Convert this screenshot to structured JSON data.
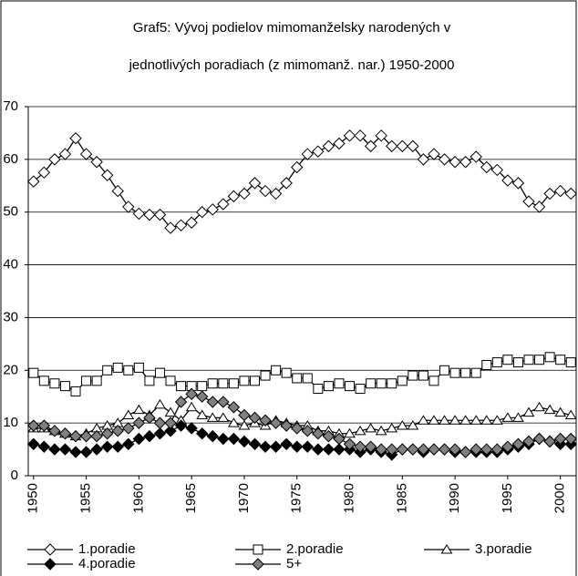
{
  "chart_data": {
    "type": "line",
    "title": [
      "Graf5: Vývoj podielov mimomanželsky narodených v",
      "jednotlivých poradiach (z mimomanž. nar.) 1950-2000"
    ],
    "x": [
      1950,
      1951,
      1952,
      1953,
      1954,
      1955,
      1956,
      1957,
      1958,
      1959,
      1960,
      1961,
      1962,
      1963,
      1964,
      1965,
      1966,
      1967,
      1968,
      1969,
      1970,
      1971,
      1972,
      1973,
      1974,
      1975,
      1976,
      1977,
      1978,
      1979,
      1980,
      1981,
      1982,
      1983,
      1984,
      1985,
      1986,
      1987,
      1988,
      1989,
      1990,
      1991,
      1992,
      1993,
      1994,
      1995,
      1996,
      1997,
      1998,
      1999,
      2000,
      2001
    ],
    "xlim": [
      1949.5,
      2001.5
    ],
    "xticks": [
      1950,
      1955,
      1960,
      1965,
      1970,
      1975,
      1980,
      1985,
      1990,
      1995,
      2000
    ],
    "ylim": [
      0,
      70
    ],
    "yticks": [
      0,
      10,
      20,
      30,
      40,
      50,
      60,
      70
    ],
    "grid": true,
    "legend": "bottom",
    "series": [
      {
        "name": "1.poradie",
        "color": "#000000",
        "marker": "diamond",
        "fill": "#ffffff",
        "values": [
          55.8,
          57.5,
          60,
          61,
          64,
          61,
          59.5,
          57,
          54,
          51,
          49.7,
          49.5,
          49.5,
          47,
          47.5,
          48,
          50,
          50.5,
          51.5,
          53,
          53.5,
          55.5,
          54,
          53.5,
          55.5,
          58.5,
          61,
          61.5,
          62.5,
          63,
          64.5,
          64.5,
          62.5,
          64.5,
          62.5,
          62.5,
          62.5,
          60,
          61,
          60,
          59.5,
          59.5,
          60.5,
          58.5,
          58,
          56,
          55.5,
          52,
          51,
          53.5,
          54,
          53.5
        ]
      },
      {
        "name": "2.poradie",
        "color": "#000000",
        "marker": "square",
        "fill": "#ffffff",
        "values": [
          19.5,
          18,
          17.5,
          17,
          16,
          18,
          18,
          20,
          20.5,
          20,
          20.5,
          18,
          19.5,
          18,
          17,
          17,
          17,
          17.5,
          17.5,
          17.5,
          18,
          18,
          19,
          20,
          19.5,
          18.5,
          18.5,
          16.5,
          17,
          17.5,
          17,
          16.5,
          17.5,
          17.5,
          17.5,
          18,
          19,
          19,
          18,
          20,
          19.5,
          19.5,
          19.5,
          21,
          21.5,
          22,
          21.5,
          22,
          22,
          22.5,
          22,
          21.5
        ]
      },
      {
        "name": "3.poradie",
        "color": "#000000",
        "marker": "triangle",
        "fill": "#ffffff",
        "values": [
          9,
          9,
          8.5,
          8,
          7.5,
          8,
          9,
          9.5,
          10,
          11.5,
          12.5,
          11.5,
          13.5,
          12,
          10.5,
          13,
          11.5,
          11,
          11,
          10,
          9.5,
          10,
          9.5,
          10.5,
          10,
          9.5,
          9.5,
          8.5,
          8.5,
          8,
          8,
          8.5,
          9,
          8.5,
          9,
          9.5,
          9.5,
          10.5,
          10.5,
          10.5,
          10.5,
          10.5,
          10.5,
          10.5,
          10.5,
          11,
          11,
          12,
          13,
          12.5,
          12,
          11.5
        ]
      },
      {
        "name": "4.poradie",
        "color": "#000000",
        "marker": "diamond",
        "fill": "#000000",
        "values": [
          6,
          5.5,
          5,
          5,
          4.5,
          4.5,
          5,
          5.5,
          5.5,
          6,
          7,
          7.5,
          8,
          8.5,
          9.5,
          9,
          8,
          7.5,
          7,
          7,
          6.5,
          6,
          5.5,
          5.5,
          6,
          5.5,
          5.5,
          5,
          5,
          5,
          5,
          4.5,
          5,
          4.5,
          4,
          5,
          5,
          4.5,
          5,
          5,
          4.5,
          4.5,
          4.5,
          4.5,
          4.5,
          5,
          5.5,
          6,
          7,
          6.5,
          6,
          6
        ]
      },
      {
        "name": "5+",
        "color": "#000000",
        "marker": "diamond",
        "fill": "#808080",
        "values": [
          9.5,
          9.5,
          8.5,
          8,
          7.5,
          7.5,
          7.5,
          8,
          8.5,
          9,
          10,
          11,
          10,
          10,
          14,
          15.5,
          15,
          14,
          14,
          13,
          11.5,
          11,
          10.5,
          10,
          9.5,
          9,
          8.5,
          8,
          7.5,
          7,
          6,
          5.5,
          5.5,
          5,
          5,
          5,
          5,
          5,
          5,
          5,
          5,
          4.5,
          5,
          5,
          5,
          5.5,
          6,
          6.5,
          7,
          6.5,
          7,
          7
        ]
      }
    ]
  }
}
